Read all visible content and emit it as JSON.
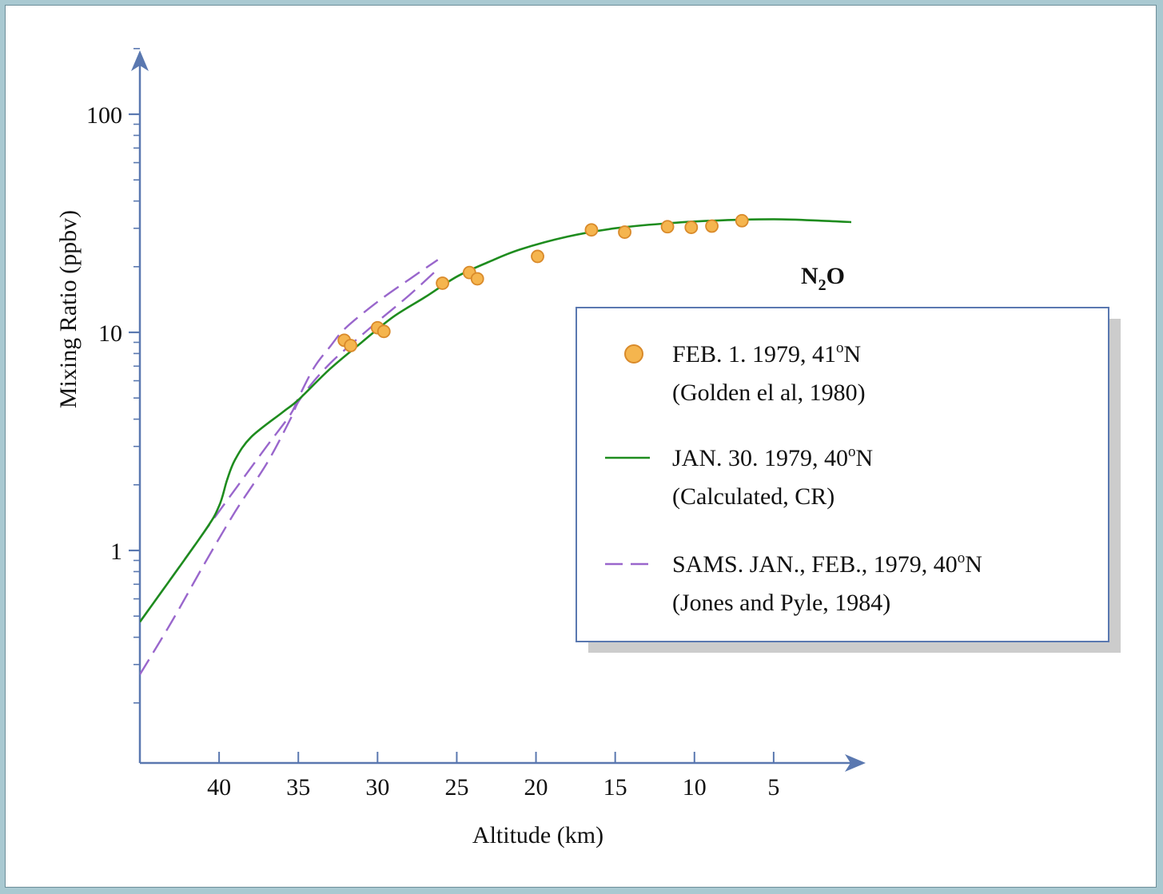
{
  "chart_data": {
    "type": "line",
    "title": "",
    "species_label_main": "N",
    "species_label_sub": "2",
    "species_label_tail": "O",
    "xlabel": "Altitude (km)",
    "ylabel": "Mixing Ratio (ppbv)",
    "x_reversed": true,
    "xlim": [
      45,
      0
    ],
    "ylim": [
      0.15,
      200
    ],
    "y_scale": "log",
    "x_ticks": [
      40,
      35,
      30,
      25,
      20,
      15,
      10,
      5
    ],
    "y_ticks": [
      1,
      10,
      100
    ],
    "y_tick_labels": [
      "1",
      "10",
      "100"
    ],
    "grid": false,
    "legend_position": "right",
    "colors": {
      "axis": "#5a78b0",
      "observed": "#f5b54e",
      "observed_edge": "#d98a2a",
      "calculated": "#1e8c1e",
      "sams": "#9966cc",
      "legend_border": "#5a78b0",
      "legend_shadow": "#cccccc"
    },
    "series": [
      {
        "name": "FEB. 1. 1979, 41°N",
        "name_parts": [
          "FEB. 1. 1979, 41",
          "o",
          "N"
        ],
        "citation": "(Golden el al, 1980)",
        "kind": "scatter",
        "x": [
          32.1,
          31.7,
          30.0,
          29.6,
          25.9,
          24.2,
          23.7,
          19.9,
          16.5,
          14.4,
          11.7,
          10.2,
          8.9,
          7.0
        ],
        "y": [
          9.2,
          8.7,
          10.5,
          10.1,
          16.8,
          18.8,
          17.6,
          22.3,
          29.5,
          28.8,
          30.5,
          30.3,
          30.7,
          32.5
        ]
      },
      {
        "name": "JAN. 30. 1979, 40°N",
        "name_parts": [
          "JAN. 30. 1979, 40",
          "o",
          "N"
        ],
        "citation": "(Calculated, CR)",
        "kind": "line",
        "x": [
          45.0,
          41.0,
          40.0,
          39.5,
          39.0,
          38.0,
          36.0,
          35.0,
          33.0,
          31.0,
          29.0,
          27.0,
          25.0,
          23.0,
          21.0,
          18.0,
          15.0,
          12.0,
          9.0,
          5.0,
          2.0,
          0.0
        ],
        "y": [
          0.47,
          1.2,
          1.6,
          2.1,
          2.6,
          3.3,
          4.3,
          4.9,
          6.8,
          9.0,
          11.8,
          14.5,
          18.0,
          21.0,
          24.0,
          27.5,
          30.0,
          31.5,
          32.5,
          33.0,
          32.5,
          32.0
        ]
      },
      {
        "name": "SAMS. JAN., FEB., 1979, 40°N",
        "name_parts": [
          "SAMS. JAN., FEB., 1979, 40",
          "o",
          "N"
        ],
        "citation": "(Jones and Pyle, 1984)",
        "kind": "dashed",
        "lines": [
          {
            "x": [
              45.0,
              43.0,
              41.0,
              39.0,
              37.0,
              35.5,
              35.0,
              34.0,
              33.0,
              32.0,
              30.0,
              28.0,
              26.2
            ],
            "y": [
              0.47,
              0.75,
              1.2,
              1.9,
              3.0,
              4.2,
              5.0,
              6.9,
              8.6,
              10.5,
              13.8,
              17.5,
              21.5
            ]
          },
          {
            "x": [
              45.0,
              43.0,
              41.0,
              39.0,
              37.0,
              35.5,
              35.0,
              34.0,
              33.0,
              32.0,
              30.0,
              28.0,
              26.2
            ],
            "y": [
              0.27,
              0.47,
              0.85,
              1.5,
              2.5,
              4.0,
              4.8,
              6.0,
              7.2,
              8.4,
              11.2,
              14.8,
              19.5
            ]
          }
        ]
      }
    ]
  }
}
